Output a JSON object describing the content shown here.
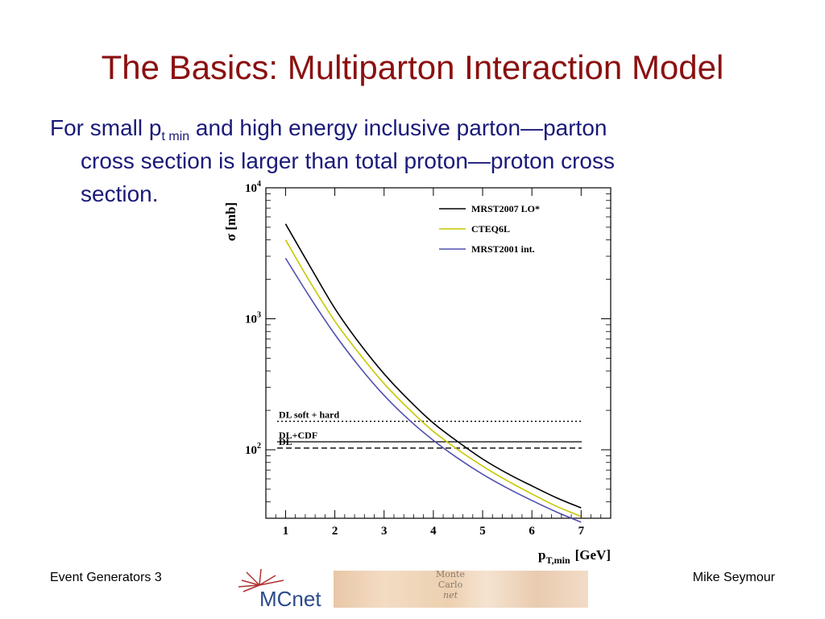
{
  "slide": {
    "title": "The Basics: Multiparton Interaction Model",
    "bullet": {
      "line1_pre": "For small p",
      "line1_sub": "t min",
      "line1_post": " and high energy inclusive parton—parton",
      "line2": "cross section is larger than total proton—proton cross",
      "line3": "section."
    },
    "footer_left": "Event Generators 3",
    "footer_right": "Mike Seymour",
    "logo_text": "MCnet",
    "logo_strip_text": [
      "Monte",
      "Carlo",
      "net"
    ]
  },
  "chart_data": {
    "type": "line",
    "ylabel": "σ [mb]",
    "xlabel_main": "p",
    "xlabel_sub": "T,min",
    "xlabel_unit": "[GeV]",
    "yscale": "log",
    "xlim": [
      0.6,
      7.6
    ],
    "ylim": [
      30,
      10000
    ],
    "x_ticks": [
      "1",
      "2",
      "3",
      "4",
      "5",
      "6",
      "7"
    ],
    "y_ticks": [
      {
        "value": 100,
        "base": "10",
        "exp": "2"
      },
      {
        "value": 1000,
        "base": "10",
        "exp": "3"
      },
      {
        "value": 10000,
        "base": "10",
        "exp": "4"
      }
    ],
    "legend_position": "top-right",
    "series": [
      {
        "name": "MRST2007 LO*",
        "color": "#000000",
        "x": [
          1,
          1.5,
          2,
          2.5,
          3,
          3.5,
          4,
          4.5,
          5,
          5.5,
          6,
          6.5,
          7
        ],
        "y": [
          5300,
          2500,
          1200,
          650,
          380,
          240,
          160,
          115,
          85,
          66,
          53,
          43,
          36
        ]
      },
      {
        "name": "CTEQ6L",
        "color": "#c8c800",
        "x": [
          1,
          1.5,
          2,
          2.5,
          3,
          3.5,
          4,
          4.5,
          5,
          5.5,
          6,
          6.5,
          7
        ],
        "y": [
          4000,
          1900,
          960,
          540,
          320,
          205,
          138,
          100,
          75,
          58,
          46,
          37,
          31
        ]
      },
      {
        "name": "MRST2001 int.",
        "color": "#5050b0",
        "x": [
          1,
          1.5,
          2,
          2.5,
          3,
          3.5,
          4,
          4.5,
          5,
          5.5,
          6,
          6.5,
          7
        ],
        "y": [
          2900,
          1450,
          760,
          430,
          260,
          170,
          118,
          86,
          65,
          51,
          41,
          33.5,
          28
        ]
      }
    ],
    "reference_lines": [
      {
        "label": "DL soft + hard",
        "value": 165,
        "style": "dotted"
      },
      {
        "label": "DL+CDF",
        "value": 115,
        "style": "solid"
      },
      {
        "label": "DL",
        "value": 103,
        "style": "dashed"
      }
    ]
  }
}
